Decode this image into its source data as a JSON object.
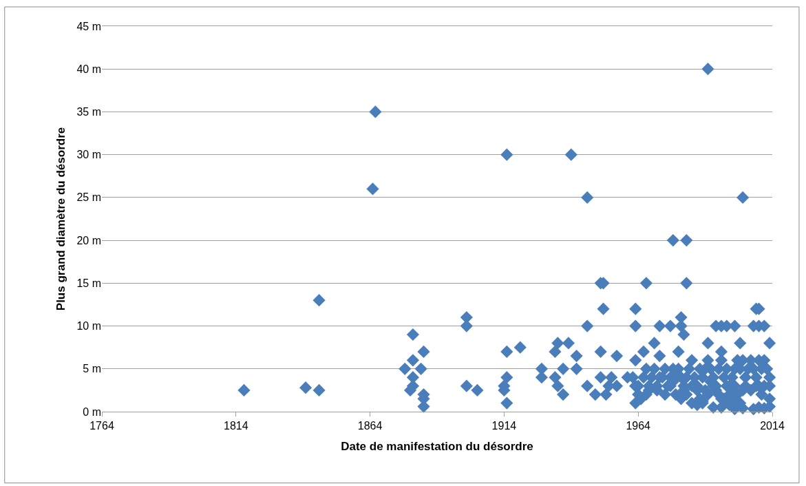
{
  "chart_data": {
    "type": "scatter",
    "xlabel": "Date de manifestation du désordre",
    "ylabel": "Plus grand diamètre du désordre",
    "x": [
      1817,
      1840,
      1845,
      1845,
      1865,
      1866,
      1877,
      1880,
      1880,
      1880,
      1879,
      1880,
      1884,
      1883,
      1884,
      1884,
      1884,
      1900,
      1900,
      1900,
      1904,
      1915,
      1915,
      1915,
      1914,
      1914,
      1915,
      1920,
      1928,
      1928,
      1933,
      1934,
      1933,
      1934,
      1936,
      1936,
      1938,
      1939,
      1941,
      1941,
      1945,
      1945,
      1945,
      1948,
      1950,
      1951,
      1950,
      1950,
      1951,
      1952,
      1953,
      1954,
      1956,
      1956,
      1960,
      1963,
      1963,
      1963,
      1963,
      1967,
      1966,
      1970,
      1972,
      1972,
      1976,
      1977,
      1982,
      1982,
      1980,
      1980,
      1981,
      1979,
      1990,
      1990,
      1993,
      1995,
      1997,
      2000,
      2003,
      2002,
      2008,
      2009,
      2007,
      2009,
      2011,
      2013,
      1995,
      1962,
      1963,
      1964,
      1965,
      1966,
      1967,
      1968,
      1969,
      1970,
      1971,
      1973,
      1974,
      1975,
      1976,
      1977,
      1978,
      1979,
      1980,
      1981,
      1982,
      1983,
      1984,
      1985,
      1986,
      1987,
      1988,
      1989,
      1990,
      1991,
      1992,
      1993,
      1994,
      1995,
      1996,
      1997,
      1998,
      1999,
      2000,
      2001,
      2002,
      2003,
      2004,
      2005,
      2006,
      2007,
      2008,
      2009,
      2010,
      2011,
      2012,
      2013,
      1963,
      1965,
      1967,
      1971,
      1974,
      1976,
      1978,
      1980,
      1982,
      1984,
      1986,
      1988,
      1990,
      1992,
      1994,
      1996,
      1998,
      2000,
      2001,
      2002,
      2003,
      2004,
      2008,
      2010,
      2011,
      2013,
      1964,
      1968,
      1972,
      1977,
      1981,
      1987,
      1989,
      1991,
      1993,
      1995,
      1997,
      1999,
      2000,
      2006,
      2009,
      2013,
      1984,
      1986,
      1988,
      1992,
      1995,
      1998,
      2000,
      2003,
      2007,
      2009,
      2011,
      2013
    ],
    "values": [
      2.5,
      2.8,
      2.5,
      13,
      26,
      35,
      5,
      9,
      6,
      4,
      2.5,
      3,
      7,
      5,
      2,
      1.5,
      0.6,
      11,
      10,
      3,
      2.5,
      30,
      7,
      4,
      3,
      2.5,
      1,
      7.5,
      5,
      4,
      7,
      8,
      4,
      3,
      2,
      5,
      8,
      30,
      6.5,
      5,
      25,
      10,
      3,
      2,
      15,
      15,
      7,
      4,
      12,
      2,
      3,
      4,
      6.5,
      3,
      4,
      12,
      10,
      6,
      3,
      15,
      7,
      8,
      10,
      6.5,
      10,
      20,
      20,
      15,
      11,
      10,
      9,
      7,
      40,
      8,
      10,
      10,
      10,
      10,
      25,
      8,
      12,
      12,
      10,
      10,
      10,
      8,
      7,
      4,
      3,
      2,
      1.5,
      4,
      5,
      3,
      4,
      5,
      3,
      4,
      5,
      3,
      4,
      5,
      4,
      5,
      4,
      3,
      4,
      5,
      6,
      4,
      3,
      5,
      4,
      5,
      6,
      5,
      4,
      3,
      5,
      6,
      4,
      5,
      3,
      4,
      5,
      6,
      5,
      6,
      4,
      5,
      6,
      5,
      4,
      6,
      5,
      6,
      5,
      4,
      1,
      1.5,
      2,
      2.5,
      2,
      3,
      2,
      1.5,
      2,
      3,
      2.5,
      1,
      2,
      3,
      2,
      1.5,
      2,
      3,
      2,
      1,
      2.5,
      3,
      3,
      2,
      3,
      1.5,
      3,
      2.5,
      4,
      3.5,
      2.5,
      1.5,
      2.5,
      3.5,
      2.5,
      1.5,
      3,
      2.5,
      1.5,
      2.5,
      3,
      3,
      1,
      0.8,
      1.2,
      0.5,
      0.5,
      0.8,
      0.3,
      0.4,
      0.3,
      0.5,
      0.4,
      0.6
    ],
    "color": "#4a7ebb",
    "marker": "diamond",
    "xlim": [
      1764,
      2014
    ],
    "xticks": [
      1764,
      1814,
      1864,
      1914,
      1964,
      2014
    ],
    "ylim": [
      0,
      45
    ],
    "yticks": [
      {
        "value": 0,
        "label": "0 m"
      },
      {
        "value": 5,
        "label": "5 m"
      },
      {
        "value": 10,
        "label": "10 m"
      },
      {
        "value": 15,
        "label": "15 m"
      },
      {
        "value": 20,
        "label": "20 m"
      },
      {
        "value": 25,
        "label": "25 m"
      },
      {
        "value": 30,
        "label": "30 m"
      },
      {
        "value": 35,
        "label": "35 m"
      },
      {
        "value": 40,
        "label": "40 m"
      },
      {
        "value": 45,
        "label": "45 m"
      }
    ],
    "grid": "y",
    "legend": false
  }
}
